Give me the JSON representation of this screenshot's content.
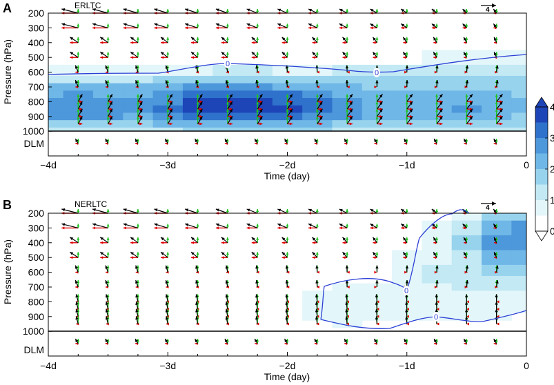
{
  "chart_data": {
    "type": "vector-contour",
    "colorbar": {
      "ticks": [
        "0",
        "1",
        "2",
        "3",
        "4"
      ],
      "colors": [
        "#ffffff",
        "#e3f6fa",
        "#c2e9f4",
        "#98d3ee",
        "#6fb7e6",
        "#4d97db",
        "#2f72cc",
        "#1e45b8"
      ],
      "contour_color": "#2b3fd6",
      "arrow_colors": {
        "total": "#000000",
        "u_component": "#e00000",
        "v_component": "#1fc21f"
      }
    },
    "panels": [
      {
        "letter": "A",
        "name": "ERLTC",
        "ref_vector": "4",
        "xlabel": "Time (day)",
        "ylabel": "Pressure (hPa)",
        "x_ticks": [
          "−4d",
          "−3d",
          "−2d",
          "−1d",
          "0"
        ],
        "y_ticks": [
          "200",
          "300",
          "400",
          "500",
          "600",
          "700",
          "800",
          "900",
          "1000"
        ],
        "dlm_label": "DLM",
        "contour_labels": [
          "0",
          "0"
        ],
        "x_days": [
          -3.75,
          -3.5,
          -3.25,
          -3.0,
          -2.75,
          -2.5,
          -2.25,
          -2.0,
          -1.75,
          -1.5,
          -1.25,
          -1.0,
          -0.75,
          -0.5,
          -0.25
        ],
        "levels_hpa": [
          200,
          300,
          400,
          500,
          600,
          700,
          800,
          850,
          900,
          950
        ],
        "shading": {
          "x_days": [
            -4,
            -3.75,
            -3.5,
            -3.25,
            -3.0,
            -2.75,
            -2.5,
            -2.25,
            -2.0,
            -1.75,
            -1.5,
            -1.25,
            -1.0,
            -0.75,
            -0.5,
            -0.25,
            0
          ],
          "levels_hpa": [
            200,
            300,
            400,
            500,
            600,
            650,
            700,
            750,
            800,
            850,
            900,
            950,
            1000
          ],
          "values": [
            [
              -0.5,
              -0.5,
              -0.5,
              -0.5,
              -0.5,
              -0.5,
              -0.5,
              -0.5,
              -0.5,
              -0.5,
              -0.5,
              -0.5,
              -0.5,
              -0.5,
              -0.5,
              -0.5,
              -0.5
            ],
            [
              -0.5,
              -0.5,
              -0.5,
              -0.5,
              -0.5,
              -0.5,
              -0.5,
              -0.5,
              -0.5,
              -0.5,
              -0.5,
              -0.5,
              -0.5,
              -0.5,
              -0.5,
              -0.5,
              -0.5
            ],
            [
              -0.4,
              -0.4,
              -0.4,
              -0.4,
              -0.4,
              -0.4,
              -0.4,
              -0.4,
              -0.4,
              -0.4,
              -0.4,
              -0.4,
              -0.4,
              -0.4,
              -0.4,
              -0.4,
              -0.4
            ],
            [
              -0.3,
              -0.3,
              -0.3,
              -0.3,
              -0.3,
              -0.2,
              -0.1,
              -0.2,
              -0.2,
              -0.2,
              -0.2,
              -0.2,
              -0.1,
              0.1,
              0.2,
              0.3,
              0.3
            ],
            [
              0.1,
              0.2,
              0.2,
              0.2,
              0.2,
              0.4,
              0.6,
              0.5,
              0.4,
              0.4,
              0.5,
              0.6,
              0.7,
              0.8,
              0.9,
              0.9,
              0.9
            ],
            [
              0.8,
              0.9,
              0.9,
              0.9,
              1.0,
              1.2,
              1.3,
              1.2,
              1.1,
              1.0,
              1.0,
              1.0,
              1.0,
              1.0,
              1.0,
              1.0,
              1.0
            ],
            [
              1.5,
              1.6,
              1.6,
              1.5,
              1.7,
              2.0,
              2.1,
              2.0,
              1.9,
              1.7,
              1.5,
              1.3,
              1.2,
              1.3,
              1.4,
              1.3,
              1.2
            ],
            [
              1.9,
              2.0,
              1.9,
              1.8,
              2.2,
              2.7,
              2.8,
              2.7,
              2.5,
              2.2,
              1.9,
              1.6,
              1.5,
              1.6,
              1.7,
              1.5,
              1.4
            ],
            [
              2.1,
              2.3,
              2.1,
              2.0,
              2.4,
              3.0,
              3.1,
              3.0,
              2.8,
              2.6,
              2.2,
              1.8,
              1.7,
              1.8,
              1.9,
              1.7,
              1.6
            ],
            [
              2.3,
              2.4,
              2.3,
              2.2,
              2.5,
              3.1,
              3.2,
              3.2,
              3.0,
              2.8,
              2.3,
              1.9,
              1.8,
              1.9,
              2.0,
              1.8,
              1.6
            ],
            [
              2.0,
              2.1,
              2.0,
              1.9,
              2.2,
              2.8,
              2.9,
              2.8,
              2.6,
              2.4,
              2.0,
              1.7,
              1.6,
              1.7,
              1.8,
              1.6,
              1.4
            ],
            [
              1.3,
              1.4,
              1.3,
              1.3,
              1.5,
              1.8,
              1.9,
              1.8,
              1.7,
              1.6,
              1.4,
              1.2,
              1.1,
              1.2,
              1.2,
              1.1,
              1.0
            ],
            [
              0.8,
              0.9,
              0.8,
              0.8,
              0.9,
              1.0,
              1.1,
              1.0,
              1.0,
              1.0,
              0.9,
              0.8,
              0.7,
              0.8,
              0.8,
              0.7,
              0.7
            ]
          ]
        }
      },
      {
        "letter": "B",
        "name": "NERLTC",
        "ref_vector": "4",
        "xlabel": "Time (day)",
        "ylabel": "Pressure (hPa)",
        "x_ticks": [
          "−4d",
          "−3d",
          "−2d",
          "−1d",
          "0"
        ],
        "y_ticks": [
          "200",
          "300",
          "400",
          "500",
          "600",
          "700",
          "800",
          "900",
          "1000"
        ],
        "dlm_label": "DLM",
        "contour_labels": [
          "0",
          "0"
        ],
        "x_days": [
          -3.75,
          -3.5,
          -3.25,
          -3.0,
          -2.75,
          -2.5,
          -2.25,
          -2.0,
          -1.75,
          -1.5,
          -1.25,
          -1.0,
          -0.75,
          -0.5,
          -0.25
        ],
        "levels_hpa": [
          200,
          300,
          400,
          500,
          600,
          700,
          800,
          850,
          900,
          950
        ],
        "shading": {
          "x_days": [
            -4,
            -3.75,
            -3.5,
            -3.25,
            -3.0,
            -2.75,
            -2.5,
            -2.25,
            -2.0,
            -1.75,
            -1.5,
            -1.25,
            -1.0,
            -0.75,
            -0.5,
            -0.25,
            0
          ],
          "levels_hpa": [
            200,
            300,
            400,
            500,
            600,
            650,
            700,
            750,
            800,
            850,
            900,
            950,
            1000
          ],
          "values": [
            [
              -0.5,
              -0.5,
              -0.5,
              -0.5,
              -0.5,
              -0.5,
              -0.5,
              -0.5,
              -0.5,
              -0.5,
              -0.5,
              -0.5,
              -0.5,
              -0.3,
              0.2,
              1.0,
              1.3
            ],
            [
              -0.5,
              -0.5,
              -0.5,
              -0.5,
              -0.5,
              -0.5,
              -0.5,
              -0.5,
              -0.5,
              -0.5,
              -0.5,
              -0.5,
              -0.3,
              0.1,
              0.8,
              1.8,
              2.1
            ],
            [
              -0.5,
              -0.5,
              -0.5,
              -0.5,
              -0.5,
              -0.5,
              -0.5,
              -0.5,
              -0.5,
              -0.5,
              -0.5,
              -0.4,
              -0.2,
              0.3,
              1.0,
              2.0,
              2.4
            ],
            [
              -0.5,
              -0.5,
              -0.5,
              -0.5,
              -0.5,
              -0.5,
              -0.5,
              -0.5,
              -0.5,
              -0.5,
              -0.5,
              -0.3,
              0.1,
              0.4,
              0.9,
              1.5,
              1.7
            ],
            [
              -0.5,
              -0.5,
              -0.5,
              -0.5,
              -0.5,
              -0.5,
              -0.5,
              -0.5,
              -0.5,
              -0.5,
              -0.4,
              -0.2,
              0.2,
              0.5,
              0.8,
              1.1,
              1.2
            ],
            [
              -0.5,
              -0.5,
              -0.5,
              -0.5,
              -0.5,
              -0.5,
              -0.5,
              -0.5,
              -0.5,
              -0.4,
              -0.3,
              -0.1,
              0.3,
              0.5,
              0.6,
              0.8,
              0.9
            ],
            [
              -0.5,
              -0.5,
              -0.5,
              -0.5,
              -0.5,
              -0.5,
              -0.5,
              -0.5,
              -0.5,
              -0.2,
              0.1,
              0.1,
              0.3,
              0.4,
              0.5,
              0.5,
              0.5
            ],
            [
              -0.5,
              -0.5,
              -0.5,
              -0.5,
              -0.5,
              -0.5,
              -0.5,
              -0.5,
              -0.4,
              0.1,
              0.3,
              0.3,
              0.4,
              0.4,
              0.4,
              0.4,
              0.4
            ],
            [
              -0.5,
              -0.5,
              -0.5,
              -0.5,
              -0.5,
              -0.5,
              -0.5,
              -0.5,
              -0.3,
              0.2,
              0.4,
              0.4,
              0.4,
              0.4,
              0.4,
              0.4,
              0.4
            ],
            [
              -0.5,
              -0.5,
              -0.5,
              -0.5,
              -0.5,
              -0.5,
              -0.5,
              -0.5,
              -0.2,
              0.3,
              0.4,
              0.4,
              0.4,
              0.4,
              0.4,
              0.3,
              0.3
            ],
            [
              -0.5,
              -0.5,
              -0.5,
              -0.5,
              -0.5,
              -0.5,
              -0.5,
              -0.5,
              -0.3,
              0.2,
              0.3,
              0.2,
              0.1,
              0.2,
              0.3,
              0.1,
              -0.1
            ],
            [
              -0.5,
              -0.5,
              -0.5,
              -0.5,
              -0.5,
              -0.5,
              -0.5,
              -0.5,
              -0.5,
              -0.2,
              0.1,
              -0.1,
              -0.2,
              -0.1,
              -0.1,
              -0.2,
              -0.3
            ],
            [
              -0.5,
              -0.5,
              -0.5,
              -0.5,
              -0.5,
              -0.5,
              -0.5,
              -0.5,
              -0.5,
              -0.5,
              -0.3,
              -0.4,
              -0.4,
              -0.4,
              -0.4,
              -0.5,
              -0.5
            ]
          ]
        }
      }
    ]
  }
}
